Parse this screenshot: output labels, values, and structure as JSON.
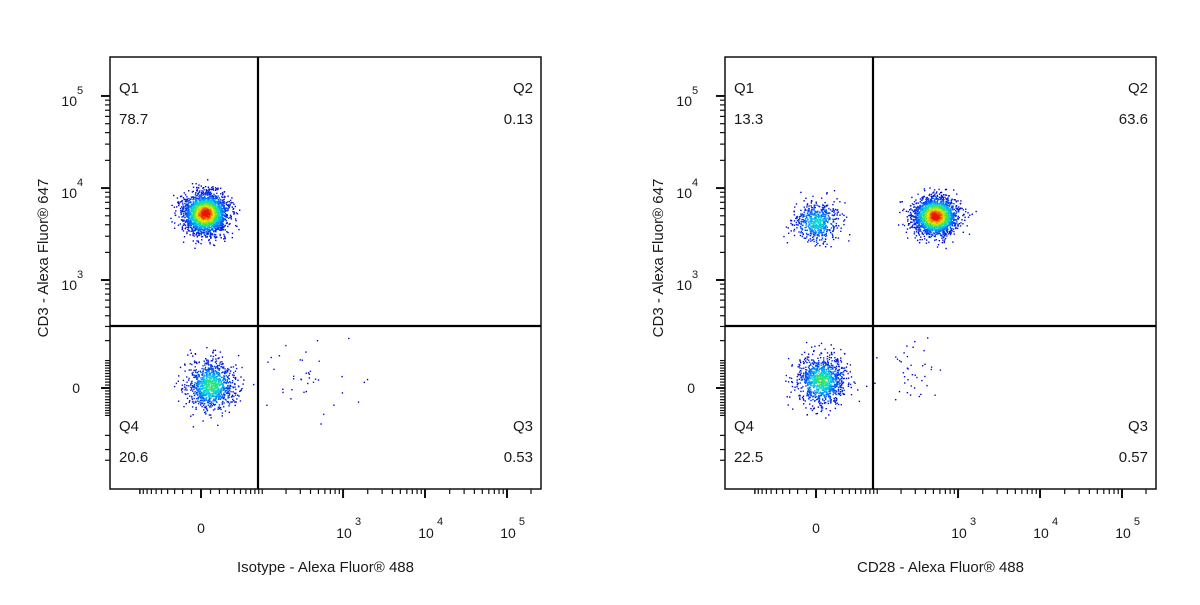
{
  "chart_data": [
    {
      "type": "scatter",
      "subtype": "flow-cytometry-pseudocolor-quadrant",
      "xlabel": "Isotype - Alexa Fluor® 488",
      "ylabel": "CD3 - Alexa Fluor® 647",
      "x_scale": "biexponential",
      "y_scale": "biexponential",
      "x_ticks": [
        {
          "value": 0,
          "label": "0"
        },
        {
          "value": 1000,
          "base": "10",
          "exp": "3"
        },
        {
          "value": 10000,
          "base": "10",
          "exp": "4"
        },
        {
          "value": 100000,
          "base": "10",
          "exp": "5"
        }
      ],
      "y_ticks": [
        {
          "value": 0,
          "label": "0"
        },
        {
          "value": 1000,
          "base": "10",
          "exp": "3"
        },
        {
          "value": 10000,
          "base": "10",
          "exp": "4"
        },
        {
          "value": 100000,
          "base": "10",
          "exp": "5"
        }
      ],
      "gate": {
        "x_threshold": 88,
        "y_threshold": 304
      },
      "quadrants": [
        {
          "name": "Q1",
          "value": "78.7",
          "pos": "top-left"
        },
        {
          "name": "Q2",
          "value": "0.13",
          "pos": "top-right"
        },
        {
          "name": "Q3",
          "value": "0.53",
          "pos": "bottom-right"
        },
        {
          "name": "Q4",
          "value": "20.6",
          "pos": "bottom-left"
        }
      ],
      "populations": [
        {
          "x": 4,
          "y": 5350,
          "sx": 0.55,
          "sy": 0.45,
          "n": 2600
        },
        {
          "x": 10,
          "y": 10,
          "sx": 0.6,
          "sy": 0.55,
          "n": 1000
        },
        {
          "x": 400,
          "y": 40,
          "sx": 1.1,
          "sy": 1.0,
          "n": 40
        }
      ]
    },
    {
      "type": "scatter",
      "subtype": "flow-cytometry-pseudocolor-quadrant",
      "xlabel": "CD28 - Alexa Fluor® 488",
      "ylabel": "CD3 - Alexa Fluor® 647",
      "x_scale": "biexponential",
      "y_scale": "biexponential",
      "x_ticks": [
        {
          "value": 0,
          "label": "0"
        },
        {
          "value": 1000,
          "base": "10",
          "exp": "3"
        },
        {
          "value": 10000,
          "base": "10",
          "exp": "4"
        },
        {
          "value": 100000,
          "base": "10",
          "exp": "5"
        }
      ],
      "y_ticks": [
        {
          "value": 0,
          "label": "0"
        },
        {
          "value": 1000,
          "base": "10",
          "exp": "3"
        },
        {
          "value": 10000,
          "base": "10",
          "exp": "4"
        },
        {
          "value": 100000,
          "base": "10",
          "exp": "5"
        }
      ],
      "gate": {
        "x_threshold": 88,
        "y_threshold": 304
      },
      "quadrants": [
        {
          "name": "Q1",
          "value": "13.3",
          "pos": "top-left"
        },
        {
          "name": "Q2",
          "value": "63.6",
          "pos": "top-right"
        },
        {
          "name": "Q3",
          "value": "0.57",
          "pos": "bottom-right"
        },
        {
          "name": "Q4",
          "value": "22.5",
          "pos": "bottom-left"
        }
      ],
      "populations": [
        {
          "x": 0,
          "y": 4280,
          "sx": 0.6,
          "sy": 0.45,
          "n": 600
        },
        {
          "x": 520,
          "y": 5000,
          "sx": 0.55,
          "sy": 0.42,
          "n": 2200
        },
        {
          "x": 5,
          "y": 27,
          "sx": 0.6,
          "sy": 0.55,
          "n": 1050
        },
        {
          "x": 300,
          "y": 60,
          "sx": 0.9,
          "sy": 0.8,
          "n": 40
        }
      ]
    }
  ]
}
